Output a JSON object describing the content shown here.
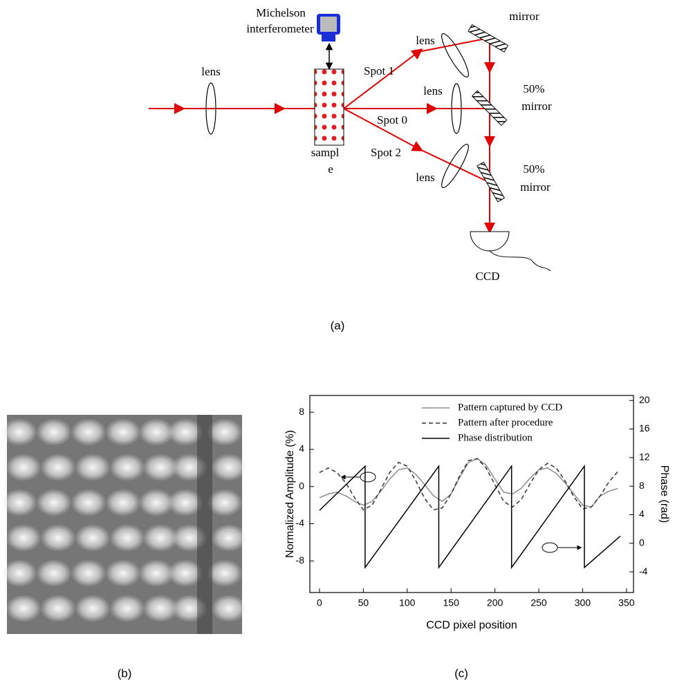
{
  "diagram": {
    "michelson": [
      "Michelson",
      "interferometer"
    ],
    "lens_left": "lens",
    "lens_top": "lens",
    "lens_mid": "lens",
    "lens_bottom": "lens",
    "mirror_top": "mirror",
    "mirror_mid": [
      "50%",
      "mirror"
    ],
    "mirror_bottom": [
      "50%",
      "mirror"
    ],
    "spot1": "Spot 1",
    "spot0": "Spot 0",
    "spot2": "Spot 2",
    "sample": [
      "sampl",
      "e"
    ],
    "ccd": "CCD",
    "caption": "(a)"
  },
  "image": {
    "caption": "(b)"
  },
  "chart_data": {
    "type": "line",
    "caption": "(c)",
    "xlabel": "CCD pixel position",
    "ylabel": "Normalized Amplitude (%)",
    "y2label": "Phase (rad)",
    "xlim": [
      -11,
      358
    ],
    "ylim": [
      -11.4,
      9.8
    ],
    "y2lim": [
      -6.9,
      20.7
    ],
    "xticks": [
      0,
      50,
      100,
      150,
      200,
      250,
      300,
      350
    ],
    "yticks": [
      -8,
      -4,
      0,
      4,
      8
    ],
    "y2ticks": [
      -4,
      0,
      4,
      8,
      12,
      16,
      20
    ],
    "legend": "upper right",
    "series": [
      {
        "name": "Pattern captured by CCD",
        "color": "#8c8c8c",
        "dash": "solid",
        "x": [
          0,
          10,
          20,
          30,
          40,
          50,
          60,
          70,
          80,
          90,
          100,
          110,
          120,
          130,
          140,
          150,
          160,
          170,
          180,
          190,
          200,
          210,
          220,
          230,
          240,
          250,
          260,
          270,
          280,
          290,
          300,
          310,
          320,
          330,
          340
        ],
        "values": [
          -1.2,
          -0.8,
          -0.6,
          -1.0,
          -1.6,
          -2.0,
          -1.6,
          -0.5,
          0.8,
          1.8,
          2.0,
          1.3,
          0.2,
          -1.0,
          -1.6,
          -0.8,
          1.0,
          2.6,
          3.0,
          2.3,
          0.8,
          -0.6,
          -0.8,
          -0.2,
          0.9,
          1.8,
          2.0,
          1.4,
          0.4,
          -0.8,
          -2.0,
          -2.2,
          -1.0,
          -0.5,
          -0.2
        ]
      },
      {
        "name": "Pattern after procedure",
        "color": "#333333",
        "dash": "dashed",
        "x": [
          0,
          10,
          20,
          30,
          40,
          50,
          60,
          70,
          80,
          90,
          100,
          110,
          120,
          130,
          140,
          150,
          160,
          170,
          180,
          190,
          200,
          210,
          220,
          230,
          240,
          250,
          260,
          270,
          280,
          290,
          300,
          310,
          320,
          330,
          340
        ],
        "values": [
          1.5,
          2.0,
          1.5,
          0.4,
          -1.2,
          -2.5,
          -2.0,
          -0.3,
          1.5,
          2.6,
          2.2,
          0.6,
          -1.3,
          -2.5,
          -2.3,
          -0.8,
          1.2,
          2.8,
          3.0,
          2.0,
          0.2,
          -1.6,
          -2.2,
          -1.4,
          0.3,
          1.8,
          2.5,
          2.0,
          0.6,
          -1.1,
          -2.4,
          -2.2,
          -1.0,
          0.5,
          1.6
        ]
      },
      {
        "name": "Phase distribution",
        "color": "#000000",
        "dash": "solid",
        "axis": "y2",
        "x": [
          0,
          52,
          52,
          136,
          136,
          219,
          219,
          302,
          302,
          343
        ],
        "values": [
          4.6,
          10.8,
          -3.4,
          10.8,
          -3.4,
          10.8,
          -3.4,
          10.8,
          -3.4,
          1.0
        ]
      }
    ]
  }
}
